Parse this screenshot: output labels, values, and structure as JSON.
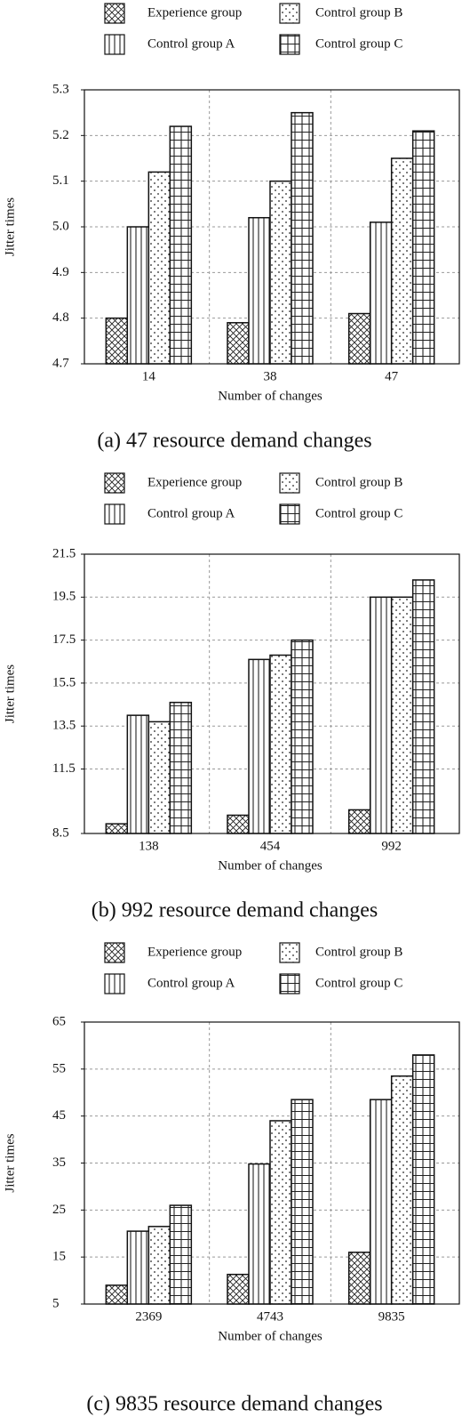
{
  "chart_data": [
    {
      "type": "bar",
      "caption": "(a) 47 resource demand changes",
      "x_label": "Number of changes",
      "y_label": "Jitter times",
      "categories": [
        "14",
        "38",
        "47"
      ],
      "series": [
        {
          "name": "Experience group",
          "color": "#ffffff",
          "pattern": "cross",
          "values": [
            4.8,
            4.79,
            4.81
          ]
        },
        {
          "name": "Control group A",
          "color": "#ffffff",
          "pattern": "vertical",
          "values": [
            5.0,
            5.02,
            5.01
          ]
        },
        {
          "name": "Control group B",
          "color": "#ffffff",
          "pattern": "dots",
          "values": [
            5.12,
            5.1,
            5.15
          ]
        },
        {
          "name": "Control group C",
          "color": "#ffffff",
          "pattern": "grid",
          "values": [
            5.22,
            5.25,
            5.21
          ]
        }
      ],
      "ylim": [
        4.7,
        5.3
      ],
      "yticks": [
        4.7,
        4.8,
        4.9,
        {
          "value": 5,
          "label": "5.0"
        },
        5.1,
        5.2,
        5.3
      ],
      "grid": true,
      "legend": "top"
    },
    {
      "type": "bar",
      "caption": "(b) 992 resource demand changes",
      "x_label": "Number of changes",
      "y_label": "Jitter times",
      "categories": [
        "138",
        "454",
        "992"
      ],
      "series": [
        {
          "name": "Experience group",
          "color": "#ffffff",
          "pattern": "cross",
          "values": [
            8.95,
            9.35,
            9.6
          ]
        },
        {
          "name": "Control group A",
          "color": "#ffffff",
          "pattern": "vertical",
          "values": [
            14.0,
            16.6,
            19.5
          ]
        },
        {
          "name": "Control group B",
          "color": "#ffffff",
          "pattern": "dots",
          "values": [
            13.7,
            16.8,
            19.5
          ]
        },
        {
          "name": "Control group C",
          "color": "#ffffff",
          "pattern": "grid",
          "values": [
            14.6,
            17.5,
            20.3
          ]
        }
      ],
      "ylim": [
        8.5,
        21.5
      ],
      "yticks": [
        8.5,
        11.5,
        13.5,
        15.5,
        17.5,
        19.5,
        21.5
      ],
      "grid": true,
      "legend": "top"
    },
    {
      "type": "bar",
      "caption": "(c) 9835 resource demand changes",
      "x_label": "Number of changes",
      "y_label": "Jitter times",
      "categories": [
        "2369",
        "4743",
        "9835"
      ],
      "series": [
        {
          "name": "Experience group",
          "color": "#ffffff",
          "pattern": "cross",
          "values": [
            9,
            11.3,
            16
          ]
        },
        {
          "name": "Control group A",
          "color": "#ffffff",
          "pattern": "vertical",
          "values": [
            20.5,
            34.8,
            48.5
          ]
        },
        {
          "name": "Control group B",
          "color": "#ffffff",
          "pattern": "dots",
          "values": [
            21.5,
            44,
            53.5
          ]
        },
        {
          "name": "Control group C",
          "color": "#ffffff",
          "pattern": "grid",
          "values": [
            26,
            48.5,
            58
          ]
        }
      ],
      "ylim": [
        5,
        65
      ],
      "yticks": [
        5,
        15,
        25,
        35,
        45,
        55,
        65
      ],
      "grid": true,
      "legend": "top"
    }
  ]
}
